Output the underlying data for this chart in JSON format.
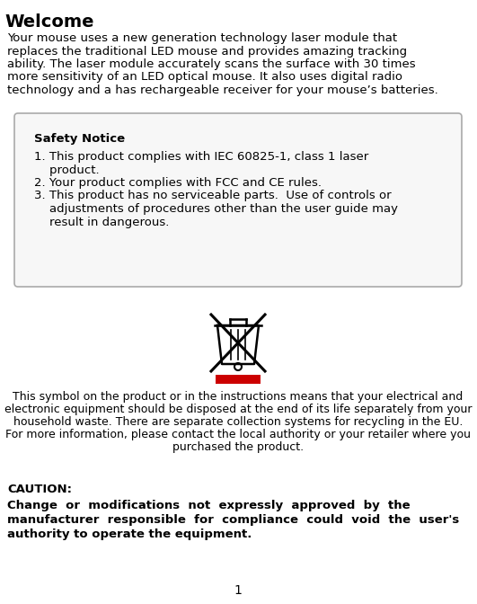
{
  "bg_color": "#ffffff",
  "title": "Welcome",
  "title_fontsize": 14,
  "welcome_lines": [
    "Your mouse uses a new generation technology laser module that",
    "replaces the traditional LED mouse and provides amazing tracking",
    "ability. The laser module accurately scans the surface with 30 times",
    "more sensitivity of an LED optical mouse. It also uses digital radio",
    "technology and a has rechargeable receiver for your mouse’s batteries."
  ],
  "welcome_fontsize": 9.5,
  "safety_title": "Safety Notice",
  "safety_title_fontsize": 9.5,
  "safety_lines": [
    "1. This product complies with IEC 60825-1, class 1 laser",
    "    product.",
    "2. Your product complies with FCC and CE rules.",
    "3. This product has no serviceable parts.  Use of controls or",
    "    adjustments of procedures other than the user guide may",
    "    result in dangerous."
  ],
  "safety_fontsize": 9.5,
  "symbol_lines": [
    "This symbol on the product or in the instructions means that your electrical and",
    "electronic equipment should be disposed at the end of its life separately from your",
    "household waste. There are separate collection systems for recycling in the EU.",
    "For more information, please contact the local authority or your retailer where you",
    "purchased the product."
  ],
  "symbol_fontsize": 9.0,
  "caution_label": "CAUTION:",
  "caution_lines": [
    "Change  or  modifications  not  expressly  approved  by  the",
    "manufacturer  responsible  for  compliance  could  void  the  user's",
    "authority to operate the equipment."
  ],
  "caution_fontsize": 9.5,
  "page_number": "1",
  "page_fontsize": 10,
  "bar_color": "#cc0000",
  "text_color": "#000000",
  "box_edge_color": "#aaaaaa",
  "box_face_color": "#f7f7f7"
}
